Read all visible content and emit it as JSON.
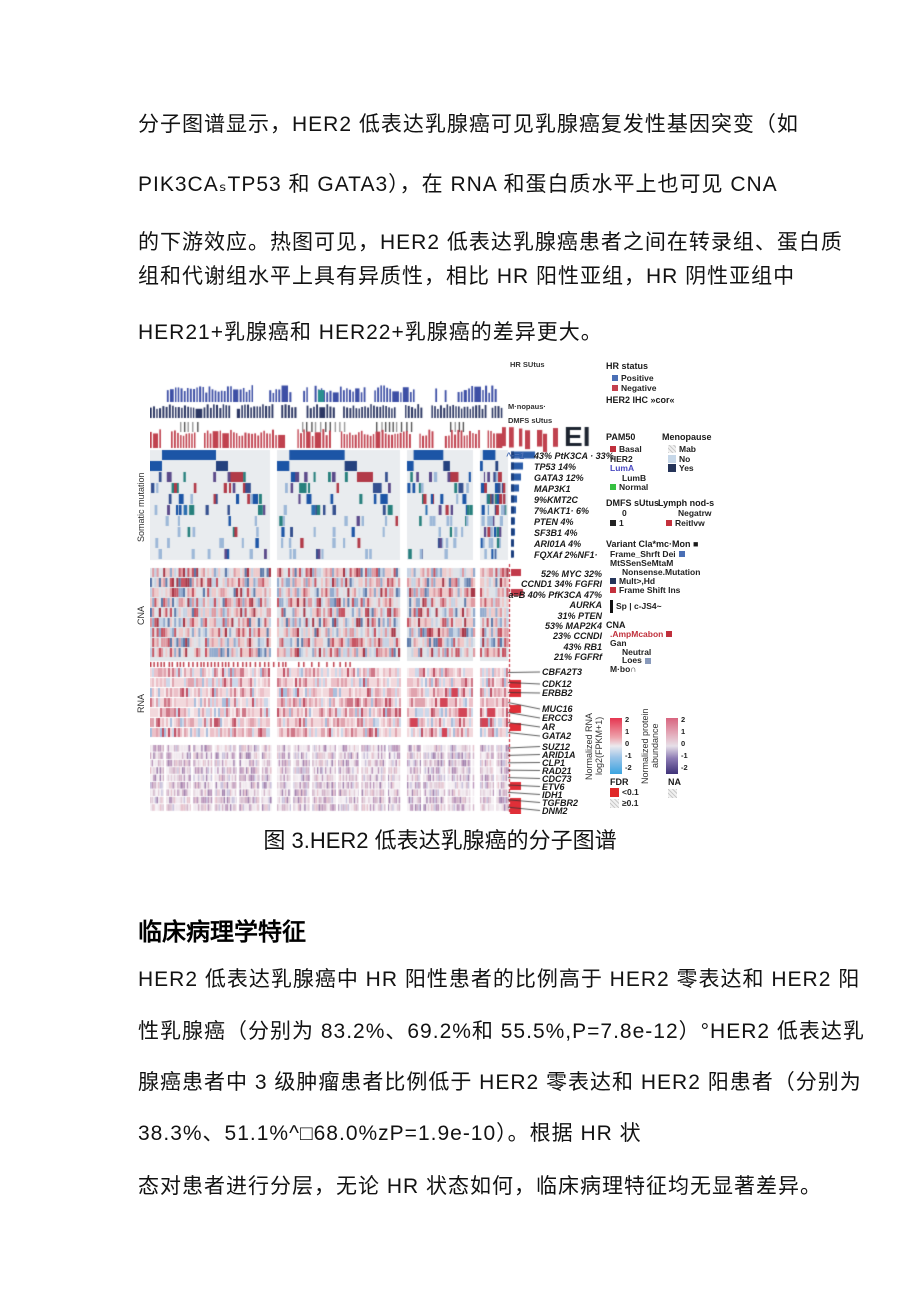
{
  "doc": {
    "para1": [
      "分子图谱显示，HER2 低表达乳腺癌可见乳腺癌复发性基因突变（如",
      "PIK3CAₛTP53 和 GATA3），在 RNA 和蛋白质水平上也可见 CNA"
    ],
    "para2": [
      "的下游效应。热图可见，HER2 低表达乳腺癌患者之间在转录组、蛋白质",
      "组和代谢组水平上具有异质性，相比 HR 阳性亚组，HR 阴性亚组中",
      "HER21+乳腺癌和 HER22+乳腺癌的差异更大。"
    ],
    "figure_caption": "图 3.HER2 低表达乳腺癌的分子图谱",
    "section_heading": "临床病理学特征",
    "para3": [
      "HER2 低表达乳腺癌中 HR 阳性患者的比例高于 HER2 零表达和 HER2 阳",
      "性乳腺癌（分别为 83.2%、69.2%和 55.5%,P=7.8e-12）°HER2 低表达乳",
      "腺癌患者中 3 级肿瘤患者比例低于 HER2 零表达和 HER2 阳患者（分别为",
      "38.3%、51.1%^□68.0%zP=1.9e-10）。根据 HR 状",
      "态对患者进行分层，无论 HR 状态如何，临床病理特征均无显著差异。"
    ]
  },
  "figure": {
    "tracks": {
      "hr_label": "HR SUtus",
      "menopause_label": "M·nopaus·",
      "dmfs_label": "DMFS sUtus",
      "end_text": "EI"
    },
    "somatic": {
      "axis_label": "Somatic mutation",
      "prefix": "^·=1",
      "genes": [
        "43% PtK3CA · 33%",
        "TP53 14%",
        "GATA3 12%",
        "MAP3K1",
        "9%KMT2C",
        "7%AKT1· 6%",
        "PTEN 4%",
        "SF3B1 4%",
        "ARI01A 4%",
        "FQXAf 2%NF1·"
      ]
    },
    "cna": {
      "axis_label": "CNA",
      "genes": [
        "52% MYC 32%",
        "CCND1  34% FGFRI",
        "a≡B 40% PfK3CA 47%",
        "AURKA",
        "31% PTEN",
        "53% MAP2K4",
        "23% CCNDI",
        "43% RB1",
        "21% FGFRf"
      ]
    },
    "rna": {
      "axis_label": "RNA",
      "genes": [
        "CBFA2T3",
        "CDK12",
        "ERBB2",
        "MUC16",
        "ERCC3",
        "AR",
        "GATA2"
      ]
    },
    "protein": {
      "genes": [
        "SUZ12",
        "ARID1A",
        "CLP1",
        "RAD21",
        "CDC73",
        "ETV6",
        "IDH1",
        "TGFBR2",
        "DNM2"
      ]
    },
    "legend": {
      "hr_status": {
        "title": "HR status",
        "items": [
          {
            "label": "Positive",
            "sq": "#4a6fb5"
          },
          {
            "label": "Negative",
            "sq": "#c4404e"
          }
        ]
      },
      "her2_ihc_title": "HER2 IHC »cor«",
      "pam50": {
        "title": "PAM50",
        "items": [
          {
            "label": "Basal",
            "sq": "#c0303c"
          },
          {
            "label": "HER2"
          },
          {
            "label": "LumA",
            "color": "#4848c0"
          },
          {
            "label": "LumB",
            "indent": 1
          },
          {
            "label": "Normal",
            "sq": "#35c040"
          }
        ]
      },
      "menopause": {
        "title": "Menopause",
        "items": [
          {
            "label": "Mab",
            "sq": "hatch"
          },
          {
            "label": "No",
            "sq": "#c6d7e8"
          },
          {
            "label": "Yes",
            "sq": "#253459"
          }
        ]
      },
      "dmfs": {
        "title": "DMFS sUtus",
        "items": [
          {
            "label": "0",
            "indent": 1
          },
          {
            "label": "1",
            "sq": "#222222"
          }
        ]
      },
      "lymph": {
        "title": "Lymph nod-s",
        "items": [
          {
            "label": "Negatrw",
            "indent": 1
          },
          {
            "label": "Reitlvw",
            "sq": "#c4303c"
          }
        ]
      },
      "variant": {
        "title": "Variant Cla*mc·Mon ■",
        "items": [
          {
            "label": "Frame_Shrft Dei",
            "sq_after": "#4a6fb5"
          },
          {
            "label": "MtSSenSeMtaM"
          },
          {
            "label": "Nonsense.Mutation",
            "indent": 1
          },
          {
            "label": "Mult>,Hd",
            "sq": "#253459"
          },
          {
            "label": "Frame Shift Ins",
            "sq": "#c4303c"
          },
          {
            "label": "Sp | c-JS4~",
            "bar": 1
          }
        ]
      },
      "cna": {
        "title": "CNA",
        "items": [
          {
            "label": ".AmpMcabon",
            "color": "#c0303c",
            "sq_after": "#c0303c"
          },
          {
            "label": "Gan"
          },
          {
            "label": "Neutral",
            "indent": 1
          },
          {
            "label": "Loes",
            "indent": 1,
            "sq_after": "#8899bb"
          },
          {
            "label": "M·bo∩"
          }
        ]
      },
      "rna_scale": {
        "title_lines": [
          "Normalized RNA",
          "log2(FPKM+1)"
        ],
        "ticks": [
          "2",
          "1",
          "0",
          "-1",
          "-2"
        ]
      },
      "protein_scale": {
        "title_lines": [
          "Normalized protein",
          "abundance"
        ],
        "ticks": [
          "2",
          "1",
          "0",
          "-1",
          "-2"
        ]
      },
      "fdr": {
        "title": "FDR",
        "items": [
          {
            "label": "<0.1",
            "sq": "#e02828"
          },
          {
            "label": "≥0.1",
            "sq": "hatch"
          }
        ]
      },
      "na": {
        "title": "NA"
      }
    }
  },
  "palette": {
    "tick_blue": "#3d4fa5",
    "tick_teal": "#2a8f8f",
    "tick_navy": "#2c3763",
    "tick_gray": "#555555",
    "tick_gray2": "#9a9a9a",
    "tick_red": "#c0424f",
    "panel_bg": "#e9ecef",
    "cna_bg": "#e2e6ea",
    "mut_blue": "#1c55a6",
    "fdr_red": "#e02f38",
    "dash_red": "#cc3040",
    "bar_blue": "#2a5ca8",
    "bar_blue_dark": "#1b3f7e",
    "mut_colors": [
      "#35508f",
      "#9db8d8",
      "#27807d",
      "#b23a48",
      "#5b4a8a",
      "#1c55a6"
    ],
    "cna_palette": [
      [
        0.18,
        "#dfe3e8"
      ],
      [
        0.4,
        "#efc9c9"
      ],
      [
        0.55,
        "#df9aa2"
      ],
      [
        0.64,
        "#c75563"
      ],
      [
        0.7,
        "#a83848"
      ],
      [
        0.82,
        "#c6d3e4"
      ],
      [
        0.9,
        "#93abce"
      ],
      [
        0.95,
        "#5f7cab"
      ],
      [
        1.01,
        "#e8dce0"
      ]
    ],
    "rna_palette": [
      [
        0.28,
        "#f2d8dc"
      ],
      [
        0.45,
        "#ecc0c8"
      ],
      [
        0.58,
        "#e0a3ae"
      ],
      [
        0.66,
        "#cf7787"
      ],
      [
        0.72,
        "#c15266"
      ],
      [
        0.84,
        "#ccd8ea"
      ],
      [
        0.92,
        "#aabfdd"
      ],
      [
        1.01,
        "#f6ecee"
      ]
    ],
    "protein_palette": [
      [
        0.3,
        "#f0e8ee"
      ],
      [
        0.45,
        "#e2cdd9"
      ],
      [
        0.58,
        "#d2b3c8"
      ],
      [
        0.68,
        "#bb97bb"
      ],
      [
        0.76,
        "#a383ae"
      ],
      [
        0.84,
        "#c9c2dc"
      ],
      [
        0.92,
        "#e6c3cd"
      ],
      [
        1.01,
        "#f6f0f4"
      ]
    ]
  }
}
